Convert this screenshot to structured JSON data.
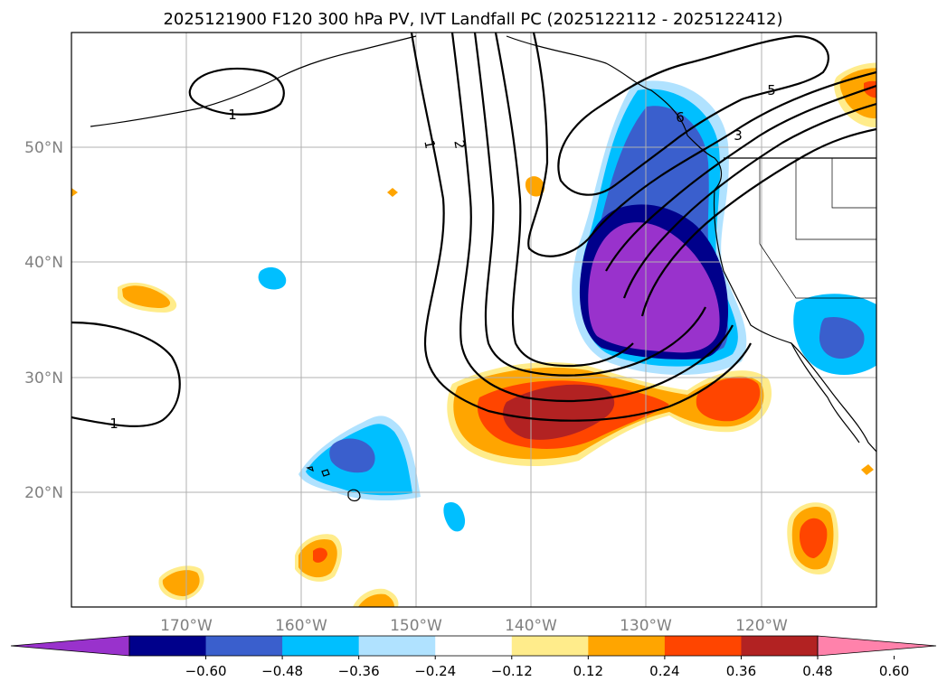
{
  "title": "2025121900 F120 300 hPa PV, IVT Landfall PC (2025122112 - 2025122412)",
  "map": {
    "lon_labels": [
      "170°W",
      "160°W",
      "150°W",
      "140°W",
      "130°W",
      "120°W"
    ],
    "lon_values": [
      -170,
      -160,
      -150,
      -140,
      -130,
      -120
    ],
    "lat_labels": [
      "50°N",
      "40°N",
      "30°N",
      "20°N"
    ],
    "lat_values": [
      50,
      40,
      30,
      20
    ],
    "lon_range": [
      -180,
      -110
    ],
    "lat_range": [
      10,
      60
    ],
    "grid": true,
    "contour_labels": [
      "1",
      "1",
      "1",
      "2",
      "3",
      "5",
      "6"
    ]
  },
  "colorbar": {
    "tick_labels": [
      "−0.60",
      "−0.48",
      "−0.36",
      "−0.24",
      "−0.12",
      "0.12",
      "0.24",
      "0.36",
      "0.48",
      "0.60"
    ],
    "bounds": [
      -0.6,
      -0.48,
      -0.36,
      -0.24,
      -0.12,
      0.12,
      0.24,
      0.36,
      0.48,
      0.6
    ],
    "colors": [
      "#9932cc",
      "#00008b",
      "#3a5fcd",
      "#00bfff",
      "#b0e2ff",
      "#ffffff",
      "#ffec8b",
      "#ffa500",
      "#ff4500",
      "#b22222",
      "#ff82ab"
    ],
    "extend": "both"
  }
}
